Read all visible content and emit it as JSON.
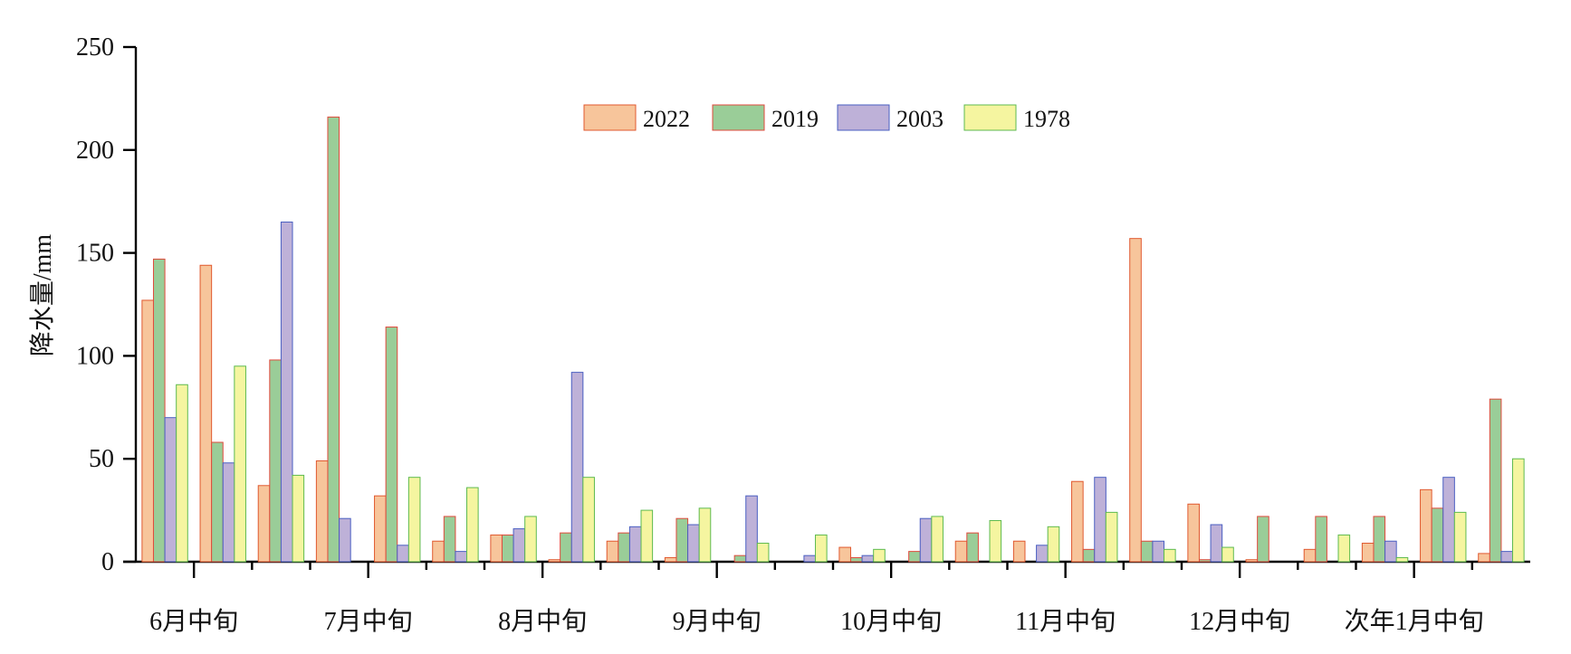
{
  "chart_data": {
    "type": "bar",
    "title": "",
    "xlabel": "",
    "ylabel": "降水量/mm",
    "ylim": [
      0,
      250
    ],
    "yticks": [
      0,
      50,
      100,
      150,
      200,
      250
    ],
    "xtick_labels": [
      "6月中旬",
      "7月中旬",
      "8月中旬",
      "9月中旬",
      "10月中旬",
      "11月中旬",
      "12月中旬",
      "次年1月中旬"
    ],
    "grid": false,
    "legend_position": "top-center",
    "series": [
      {
        "name": "2022",
        "fill": "#F7C59B",
        "stroke": "#E0592F",
        "values": [
          127,
          144,
          37,
          49,
          32,
          10,
          13,
          1,
          10,
          2,
          0,
          0,
          7,
          0,
          10,
          10,
          39,
          157,
          28,
          1,
          6,
          9,
          35,
          4
        ]
      },
      {
        "name": "2019",
        "fill": "#9ACD98",
        "stroke": "#E04A3C",
        "values": [
          147,
          58,
          98,
          216,
          114,
          22,
          13,
          14,
          14,
          21,
          3,
          0,
          2,
          5,
          14,
          0,
          6,
          10,
          1,
          22,
          22,
          22,
          26,
          79
        ]
      },
      {
        "name": "2003",
        "fill": "#BEB1D8",
        "stroke": "#4A5FC2",
        "values": [
          70,
          48,
          165,
          21,
          8,
          5,
          16,
          92,
          17,
          18,
          32,
          3,
          3,
          21,
          0,
          8,
          41,
          10,
          18,
          0,
          0,
          10,
          41,
          5
        ]
      },
      {
        "name": "1978",
        "fill": "#F5F5A0",
        "stroke": "#5DBA4F",
        "values": [
          86,
          95,
          42,
          0,
          41,
          36,
          22,
          41,
          25,
          26,
          9,
          13,
          6,
          22,
          20,
          17,
          24,
          6,
          7,
          0,
          13,
          2,
          24,
          50
        ]
      }
    ]
  }
}
